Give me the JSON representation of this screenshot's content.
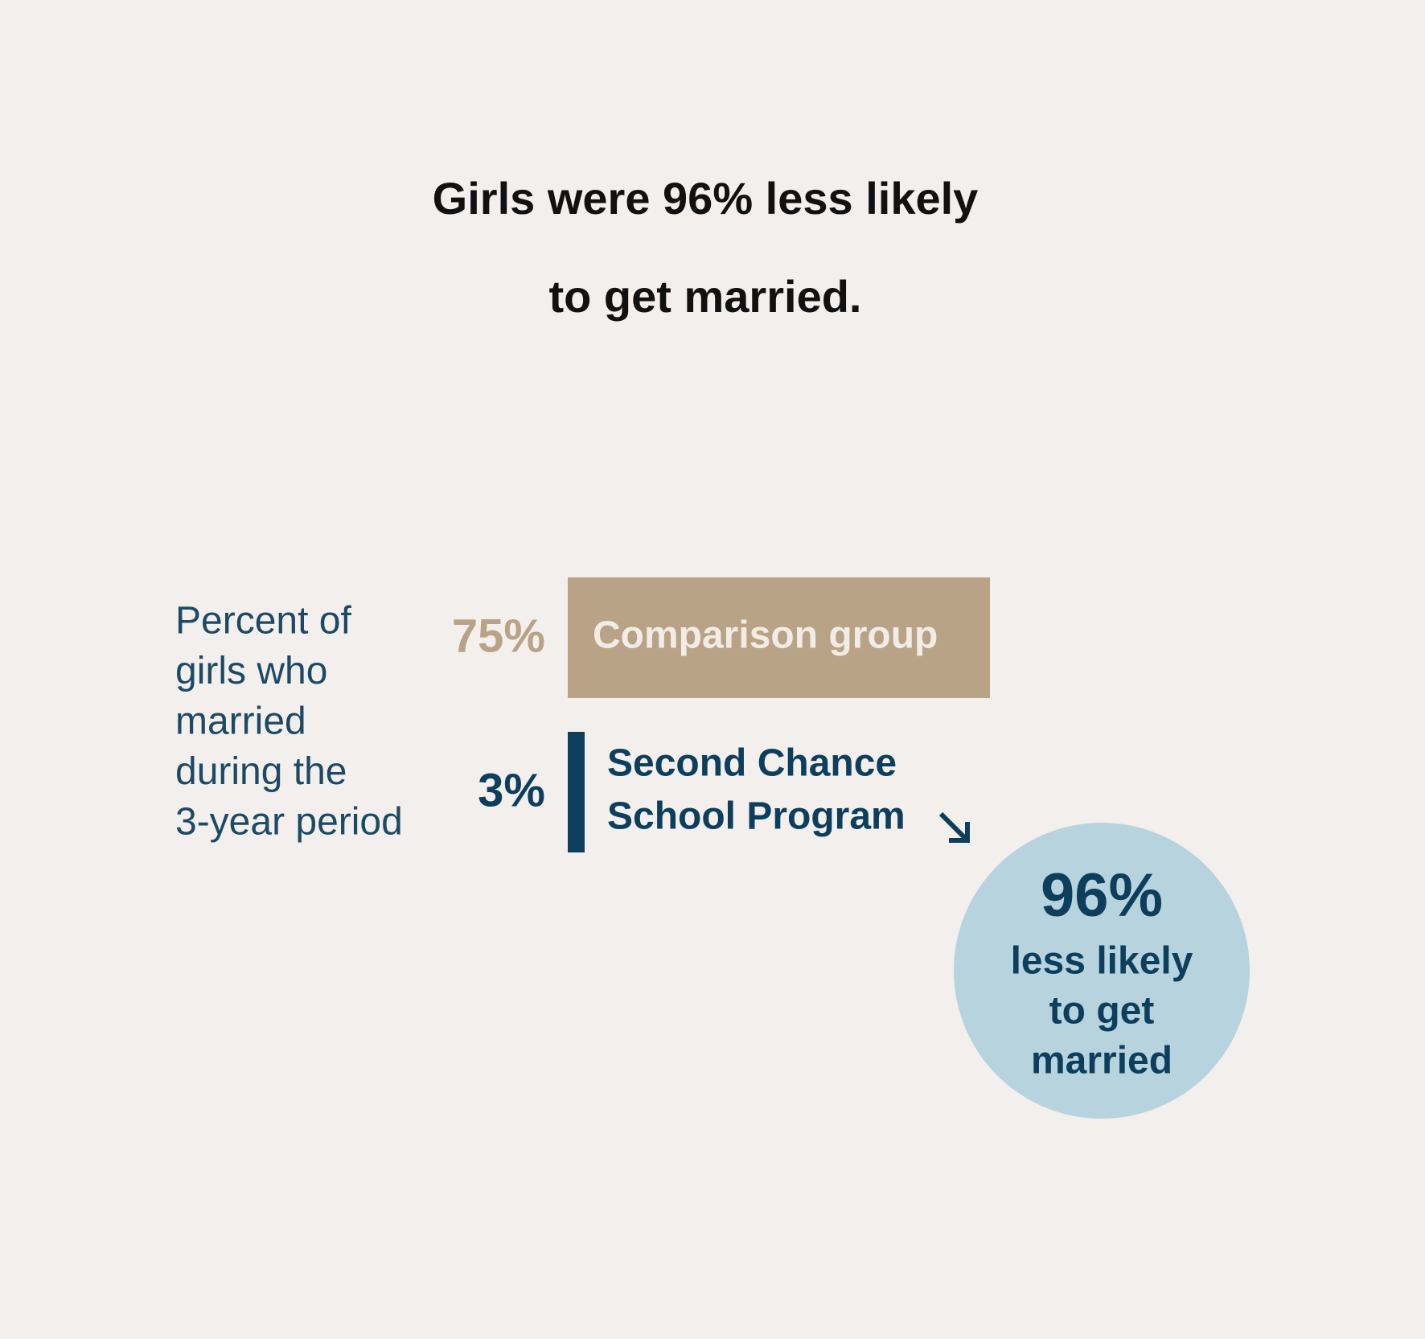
{
  "chart_data": {
    "type": "bar",
    "title": [
      "Girls were 96% less likely",
      "to get married."
    ],
    "y_label": [
      "Percent of",
      "girls who",
      "married",
      "during the",
      "3-year period"
    ],
    "categories": [
      [
        "Comparison group"
      ],
      [
        "Second Chance",
        "School Program"
      ]
    ],
    "series": [
      {
        "colors": [
          "#b9a386",
          "#0d3f5c"
        ],
        "values": [
          75,
          3
        ],
        "value_labels": [
          "75%",
          "3%"
        ]
      }
    ],
    "annotation": {
      "headline": "96%",
      "text": [
        "less likely",
        "to get",
        "married"
      ]
    }
  }
}
